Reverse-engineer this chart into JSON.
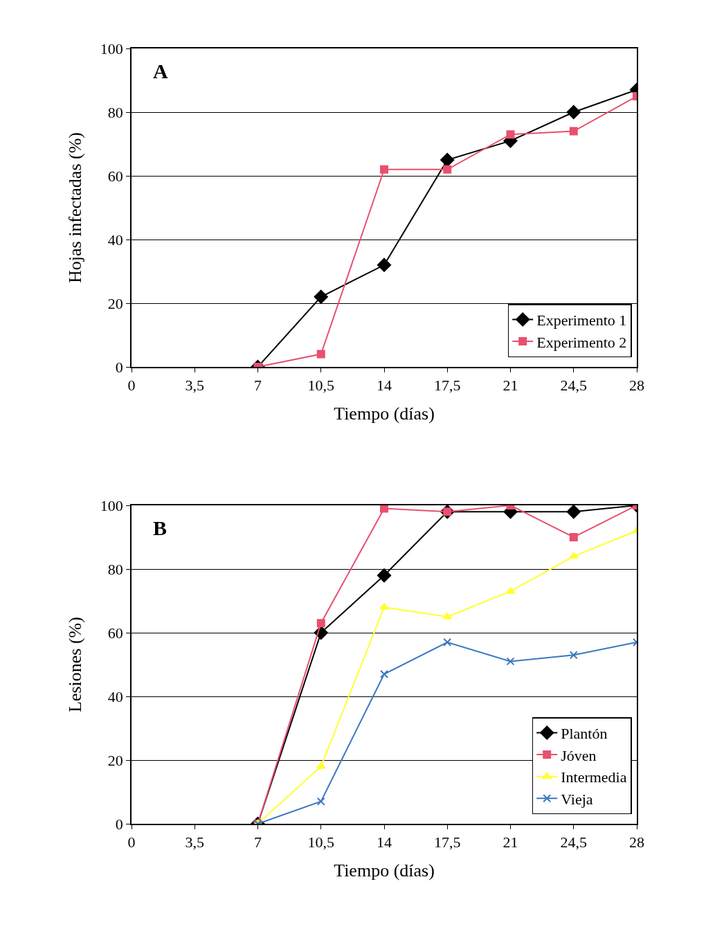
{
  "chart_data": [
    {
      "type": "line",
      "title": "A",
      "xlabel": "Tiempo (días)",
      "ylabel": "Hojas infectadas (%)",
      "x": [
        7,
        10.5,
        14,
        17.5,
        21,
        24.5,
        28
      ],
      "series": [
        {
          "name": "Experimento 1",
          "color": "#000000",
          "marker": "diamond",
          "values": [
            0,
            22,
            32,
            65,
            71,
            80,
            87
          ]
        },
        {
          "name": "Experimento 2",
          "color": "#e8506e",
          "marker": "square",
          "values": [
            0,
            4,
            62,
            62,
            73,
            74,
            85
          ]
        }
      ],
      "xlim": [
        0,
        28
      ],
      "xticks": [
        0,
        {
          "value": 3.5,
          "label": "3,5"
        },
        7,
        {
          "value": 10.5,
          "label": "10,5"
        },
        14,
        {
          "value": 17.5,
          "label": "17,5"
        },
        21,
        {
          "value": 24.5,
          "label": "24,5"
        },
        28
      ],
      "ylim": [
        0,
        100
      ],
      "yticks": [
        0,
        20,
        40,
        60,
        80,
        100
      ],
      "grid": "y",
      "legend": "bottom right",
      "line_style": "solid"
    },
    {
      "type": "line",
      "title": "B",
      "xlabel": "Tiempo (días)",
      "ylabel": "Lesiones (%)",
      "x": [
        7,
        10.5,
        14,
        17.5,
        21,
        24.5,
        28
      ],
      "series": [
        {
          "name": "Plantón",
          "color": "#000000",
          "marker": "diamond",
          "values": [
            0,
            60,
            78,
            98,
            98,
            98,
            100
          ]
        },
        {
          "name": "Jóven",
          "color": "#e8506e",
          "marker": "square",
          "values": [
            0,
            63,
            99,
            98,
            100,
            90,
            100
          ]
        },
        {
          "name": "Intermedia",
          "color": "#ffff33",
          "marker": "triangle",
          "values": [
            0,
            18,
            68,
            65,
            73,
            84,
            92
          ]
        },
        {
          "name": "Vieja",
          "color": "#3a78c0",
          "marker": "cross",
          "values": [
            0,
            7,
            47,
            57,
            51,
            53,
            57
          ]
        }
      ],
      "xlim": [
        0,
        28
      ],
      "xticks": [
        0,
        {
          "value": 3.5,
          "label": "3,5"
        },
        7,
        {
          "value": 10.5,
          "label": "10,5"
        },
        14,
        {
          "value": 17.5,
          "label": "17,5"
        },
        21,
        {
          "value": 24.5,
          "label": "24,5"
        },
        28
      ],
      "ylim": [
        0,
        100
      ],
      "yticks": [
        0,
        20,
        40,
        60,
        80,
        100
      ],
      "grid": "y",
      "legend": "bottom right",
      "line_style": "solid"
    }
  ]
}
